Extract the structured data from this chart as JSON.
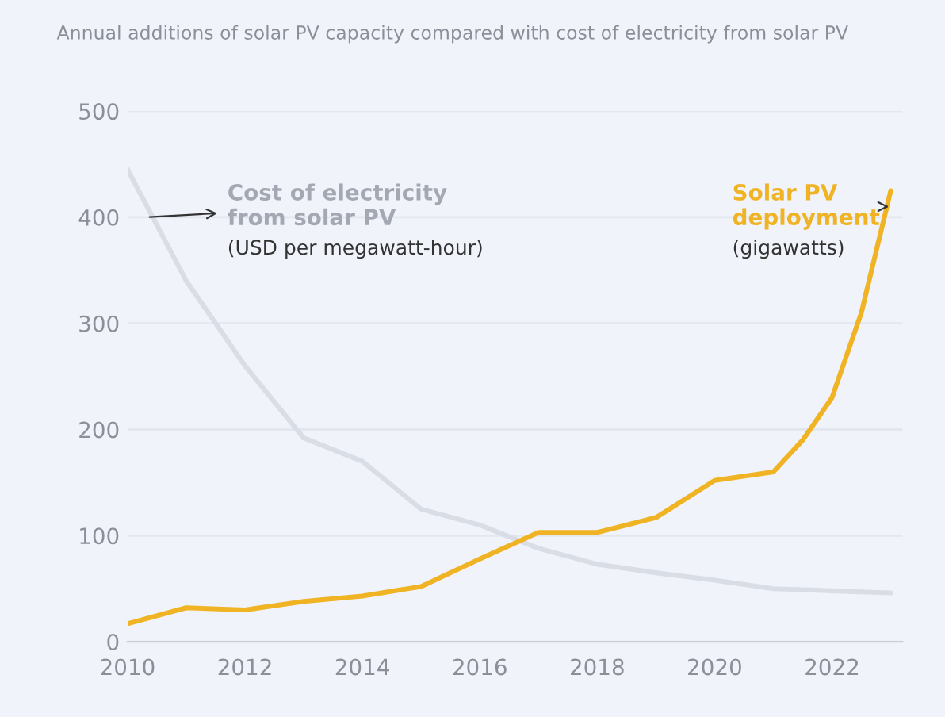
{
  "chart_data": {
    "type": "line",
    "title": "Annual additions of solar PV capacity compared with cost of electricity from solar PV",
    "x": [
      2010,
      2011,
      2012,
      2013,
      2014,
      2015,
      2016,
      2017,
      2018,
      2019,
      2020,
      2021,
      2021.5,
      2022,
      2022.5,
      2023
    ],
    "series": [
      {
        "name": "Cost of electricity from solar PV",
        "color": "#d9dde5",
        "values": [
          445,
          340,
          260,
          192,
          170,
          125,
          110,
          88,
          73,
          65,
          58,
          50,
          49,
          48,
          47,
          46
        ]
      },
      {
        "name": "Solar PV deployment",
        "color": "#f0b323",
        "values": [
          17,
          32,
          30,
          38,
          43,
          52,
          78,
          103,
          103,
          117,
          152,
          160,
          190,
          230,
          310,
          425
        ]
      }
    ],
    "annotations": [
      "(USD per megawatt-hour)",
      "(gigawatts)"
    ],
    "xlim": [
      2010,
      2023.2
    ],
    "xticks": [
      2010,
      2012,
      2014,
      2016,
      2018,
      2020,
      2022
    ],
    "ylim": [
      0,
      500
    ],
    "yticks": [
      0,
      100,
      200,
      300,
      400,
      500
    ],
    "grid": "y",
    "legend": false
  }
}
